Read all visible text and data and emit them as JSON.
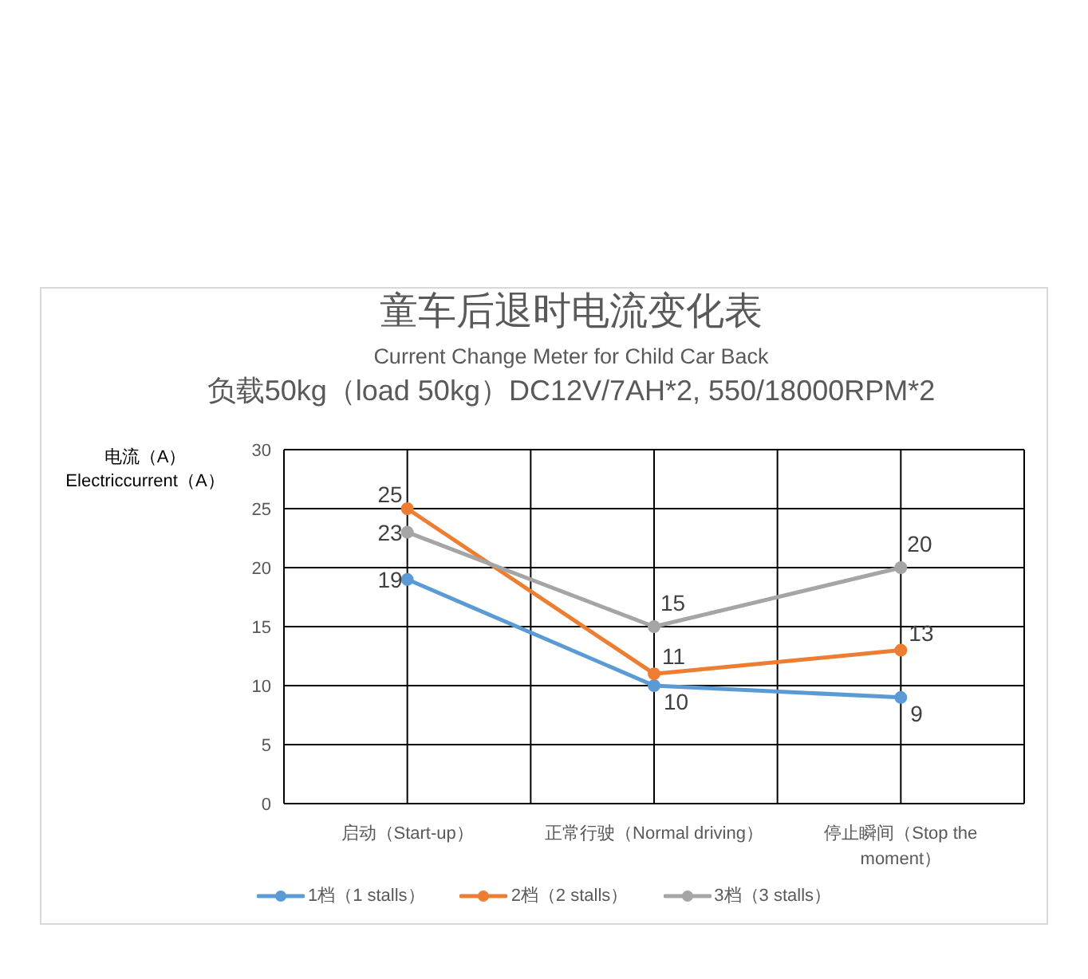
{
  "chart_data": {
    "type": "line",
    "title": "童车后退时电流变化表",
    "subtitle": "Current Change Meter for Child Car Back",
    "annotations": [
      "负载50kg（load 50kg）DC12V/7AH*2, 550/18000RPM*2"
    ],
    "ylabel": "电流（A） Electriccurrent（A）",
    "categories": [
      "启动（Start-up）",
      "正常行驶（Normal driving）",
      "停止瞬间（Stop the moment）"
    ],
    "series": [
      {
        "name": "1档（1 stalls）",
        "color": "#5b9bd5",
        "values": [
          19,
          10,
          9
        ]
      },
      {
        "name": "2档（2 stalls）",
        "color": "#ed7d31",
        "values": [
          25,
          11,
          13
        ]
      },
      {
        "name": "3档（3 stalls）",
        "color": "#a5a5a5",
        "values": [
          23,
          15,
          20
        ]
      }
    ],
    "ylim": [
      0,
      30
    ],
    "yticks": [
      0,
      5,
      10,
      15,
      20,
      25,
      30
    ],
    "grid": true,
    "legend": "bottom",
    "marker": "circle",
    "line_style": "solid",
    "data_labels": true
  }
}
